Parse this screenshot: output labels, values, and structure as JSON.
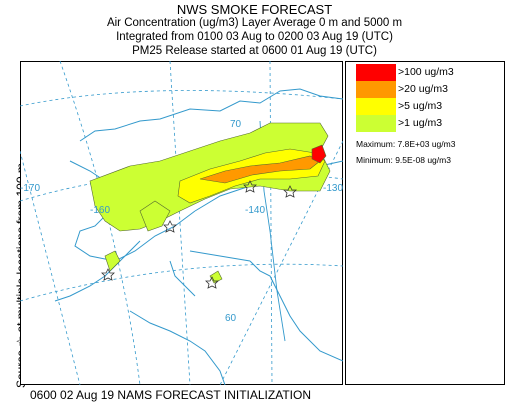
{
  "title": {
    "line1": "NWS SMOKE FORECAST",
    "line2": "Air Concentration (ug/m3) Layer Average    0 m and  5000 m",
    "line3": "Integrated from 0100 03 Aug to 0200 03 Aug 19 (UTC)",
    "line4": "PM25 Release started at 0600 01 Aug 19 (UTC)"
  },
  "side_label": "Source ☆ at multiple locations    from   100 m",
  "legend": {
    "items": [
      {
        "label": ">100 ug/m3",
        "color": "#ff0000"
      },
      {
        "label": ">20 ug/m3",
        "color": "#ff9900"
      },
      {
        "label": ">5 ug/m3",
        "color": "#ffff00"
      },
      {
        "label": ">1 ug/m3",
        "color": "#ccff33"
      }
    ],
    "maximum": "Maximum: 7.8E+03 ug/m3",
    "minimum": "Minimum: 9.5E-08 ug/m3"
  },
  "map": {
    "graticule_labels": [
      "70",
      "-170",
      "-160",
      "-140",
      "-130",
      "60"
    ],
    "coast_color": "#3399cc",
    "border_color": "#3399cc"
  },
  "footer": "0600 02 Aug 19 NAMS FORECAST INITIALIZATION"
}
